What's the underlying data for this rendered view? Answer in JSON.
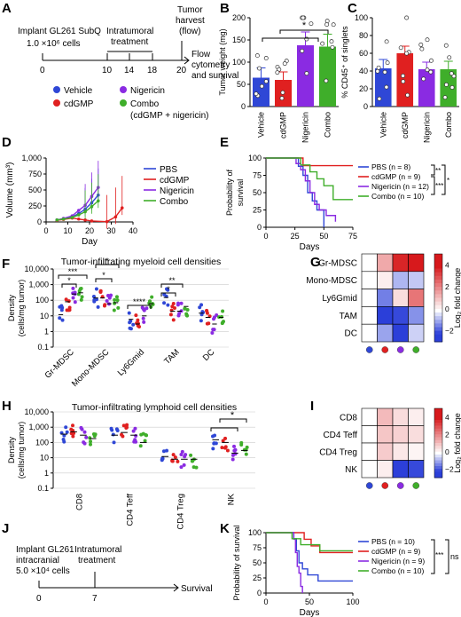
{
  "colors": {
    "vehicle": "#2f47d6",
    "cdgmp": "#e02020",
    "nigericin": "#8a2be2",
    "combo": "#3fae2a",
    "heat_hi": "#d7191c",
    "heat_lo": "#2b3fd9"
  },
  "panel_labels": [
    "A",
    "B",
    "C",
    "D",
    "E",
    "F",
    "G",
    "H",
    "I",
    "J",
    "K"
  ],
  "panelA": {
    "step1": "Implant GL261 SubQ",
    "step1b": "1.0 ×10⁶ cells",
    "step2": "Intratumoral",
    "step2b": "treatment",
    "step3": "Tumor",
    "step3b": "harvest",
    "step3c": "(flow)",
    "step4": "Flow",
    "step4b": "cytometry",
    "step4c": "and survival",
    "days": [
      "0",
      "10",
      "14",
      "18",
      "20"
    ],
    "legend": [
      "Vehicle",
      "cdGMP",
      "Nigericin",
      "Combo",
      "(cdGMP + nigericin)"
    ]
  },
  "panelJ": {
    "step1": "Implant GL261",
    "step1b": "intracranial",
    "step1c": "5.0 ×10⁴ cells",
    "step2": "Intratumoral",
    "step2b": "treatment",
    "step3": "Survival",
    "days": [
      "0",
      "7"
    ]
  },
  "chart_data": [
    {
      "id": "B",
      "type": "bar",
      "ylabel": "Tumor weight (mg)",
      "categories": [
        "Vehicle",
        "cdGMP",
        "Nigericin",
        "Combo"
      ],
      "values": [
        65,
        60,
        138,
        135
      ],
      "errors": [
        22,
        18,
        30,
        28
      ],
      "ylim": [
        0,
        200
      ],
      "yticks": [
        "0",
        "50",
        "100",
        "150",
        "200"
      ],
      "annotations": [
        "*"
      ]
    },
    {
      "id": "C",
      "type": "bar",
      "ylabel": "% CD45⁺ of singlets",
      "categories": [
        "Vehicle",
        "cdGMP",
        "Nigericin",
        "Combo"
      ],
      "values": [
        43,
        60,
        42,
        42
      ],
      "errors": [
        10,
        8,
        8,
        9
      ],
      "ylim": [
        0,
        100
      ],
      "yticks": [
        "0",
        "20",
        "40",
        "60",
        "80",
        "100"
      ]
    },
    {
      "id": "D",
      "type": "line",
      "xlabel": "Day",
      "ylabel": "Volume (mm³)",
      "xlim": [
        0,
        40
      ],
      "ylim": [
        0,
        1000
      ],
      "xticks": [
        "0",
        "10",
        "20",
        "30",
        "40"
      ],
      "yticks": [
        "0",
        "250",
        "500",
        "750",
        "1,000"
      ],
      "series": [
        {
          "name": "PBS",
          "x": [
            5,
            8,
            12,
            15,
            18,
            21,
            24
          ],
          "y": [
            30,
            50,
            80,
            130,
            200,
            300,
            420
          ]
        },
        {
          "name": "cdGMP",
          "x": [
            5,
            8,
            12,
            15,
            18,
            21,
            28,
            32,
            35
          ],
          "y": [
            25,
            40,
            60,
            45,
            30,
            15,
            5,
            80,
            220
          ]
        },
        {
          "name": "Nigericin",
          "x": [
            5,
            8,
            12,
            15,
            18,
            21,
            24
          ],
          "y": [
            30,
            55,
            95,
            180,
            260,
            400,
            540
          ]
        },
        {
          "name": "Combo",
          "x": [
            5,
            8,
            12,
            15,
            18,
            21,
            24
          ],
          "y": [
            30,
            45,
            70,
            110,
            160,
            240,
            330
          ]
        }
      ]
    },
    {
      "id": "E",
      "type": "line",
      "xlabel": "Days",
      "ylabel": "Probability of survival",
      "xlim": [
        0,
        75
      ],
      "ylim": [
        0,
        100
      ],
      "xticks": [
        "0",
        "25",
        "50",
        "75"
      ],
      "yticks": [
        "0",
        "25",
        "50",
        "75",
        "100"
      ],
      "series": [
        {
          "name": "PBS (n = 8)",
          "x": [
            0,
            28,
            32,
            36,
            40,
            44,
            50
          ],
          "y": [
            100,
            88,
            75,
            50,
            38,
            25,
            0
          ]
        },
        {
          "name": "cdGMP (n = 9)",
          "x": [
            0,
            32,
            75
          ],
          "y": [
            100,
            89,
            89
          ]
        },
        {
          "name": "Nigericin (n = 12)",
          "x": [
            0,
            26,
            30,
            34,
            38,
            42,
            46,
            52,
            60
          ],
          "y": [
            100,
            92,
            83,
            67,
            50,
            33,
            25,
            17,
            8
          ]
        },
        {
          "name": "Combo (n = 10)",
          "x": [
            0,
            30,
            38,
            44,
            50,
            58,
            75
          ],
          "y": [
            100,
            90,
            80,
            70,
            60,
            40,
            40
          ]
        }
      ],
      "annotations": [
        "**",
        "***",
        "*"
      ]
    },
    {
      "id": "F",
      "type": "scatter",
      "title": "Tumor-infiltrating myeloid cell densities",
      "ylabel": "Density (cells/mg tumor)",
      "categories": [
        "Gr-MDSC",
        "Mono-MDSC",
        "Ly6Gmid",
        "TAM",
        "DC"
      ],
      "ylim": [
        0.1,
        10000
      ],
      "yscale": "log",
      "yticks": [
        "0.1",
        "1",
        "10",
        "100",
        "1,000",
        "10,000"
      ],
      "means": [
        [
          12,
          80,
          250,
          300
        ],
        [
          140,
          140,
          60,
          70
        ],
        [
          6,
          3,
          10,
          60
        ],
        [
          150,
          20,
          20,
          40
        ],
        [
          15,
          8,
          3,
          8
        ]
      ],
      "annotations": [
        "***",
        "*",
        "*",
        "*",
        "****",
        "**",
        "*"
      ]
    },
    {
      "id": "G",
      "type": "heatmap",
      "rows": [
        "Gr-MDSC",
        "Mono-MDSC",
        "Ly6Gmid",
        "TAM",
        "DC"
      ],
      "columns": [
        "Vehicle",
        "cdGMP",
        "Nigericin",
        "Combo"
      ],
      "values": [
        [
          0,
          1.5,
          3.8,
          4.2
        ],
        [
          0,
          0.3,
          -0.8,
          -0.6
        ],
        [
          0,
          -1.4,
          0.6,
          2.4
        ],
        [
          0,
          -2.2,
          -2.0,
          -1.2
        ],
        [
          0,
          -1.0,
          -2.5,
          -0.5
        ]
      ],
      "colorbar_label": "Log₂ fold change",
      "colorbar_ticks": [
        "4",
        "2",
        "0",
        "−2"
      ]
    },
    {
      "id": "H",
      "type": "scatter",
      "title": "Tumor-infiltrating lymphoid cell densities",
      "ylabel": "Density (cells/mg tumor)",
      "categories": [
        "CD8",
        "CD4 Teff",
        "CD4 Treg",
        "NK"
      ],
      "ylim": [
        0.1,
        10000
      ],
      "yscale": "log",
      "yticks": [
        "0.1",
        "1",
        "10",
        "100",
        "1,000",
        "10,000"
      ],
      "means": [
        [
          350,
          500,
          300,
          180
        ],
        [
          300,
          450,
          300,
          100
        ],
        [
          12,
          8,
          8,
          8
        ],
        [
          150,
          100,
          20,
          30
        ]
      ],
      "annotations": [
        "*"
      ]
    },
    {
      "id": "I",
      "type": "heatmap",
      "rows": [
        "CD8",
        "CD4 Teff",
        "CD4 Treg",
        "NK"
      ],
      "columns": [
        "Vehicle",
        "cdGMP",
        "Nigericin",
        "Combo"
      ],
      "values": [
        [
          0,
          1.2,
          0.6,
          0.3
        ],
        [
          0,
          1.0,
          0.8,
          0.6
        ],
        [
          0,
          0.9,
          0.4,
          0.2
        ],
        [
          0,
          0.3,
          -2.1,
          -2.0
        ]
      ],
      "colorbar_label": "Log₂ fold change",
      "colorbar_ticks": [
        "4",
        "2",
        "0",
        "−2"
      ]
    },
    {
      "id": "K",
      "type": "line",
      "xlabel": "Days",
      "ylabel": "Probability of survival",
      "xlim": [
        0,
        100
      ],
      "ylim": [
        0,
        100
      ],
      "xticks": [
        "0",
        "50",
        "100"
      ],
      "yticks": [
        "0",
        "25",
        "50",
        "75",
        "100"
      ],
      "series": [
        {
          "name": "PBS (n = 10)",
          "x": [
            0,
            32,
            35,
            38,
            42,
            48,
            60,
            100
          ],
          "y": [
            100,
            90,
            70,
            50,
            40,
            30,
            20,
            20
          ]
        },
        {
          "name": "cdGMP (n = 9)",
          "x": [
            0,
            44,
            52,
            62,
            100
          ],
          "y": [
            100,
            89,
            78,
            67,
            67
          ]
        },
        {
          "name": "Nigericin (n = 9)",
          "x": [
            0,
            32,
            34,
            36,
            38,
            40,
            42
          ],
          "y": [
            100,
            89,
            67,
            44,
            33,
            11,
            0
          ]
        },
        {
          "name": "Combo (n = 10)",
          "x": [
            0,
            30,
            40,
            62,
            100
          ],
          "y": [
            100,
            90,
            80,
            70,
            70
          ]
        }
      ],
      "annotations": [
        "*",
        "*",
        "**",
        "***",
        "***",
        "ns"
      ]
    }
  ]
}
